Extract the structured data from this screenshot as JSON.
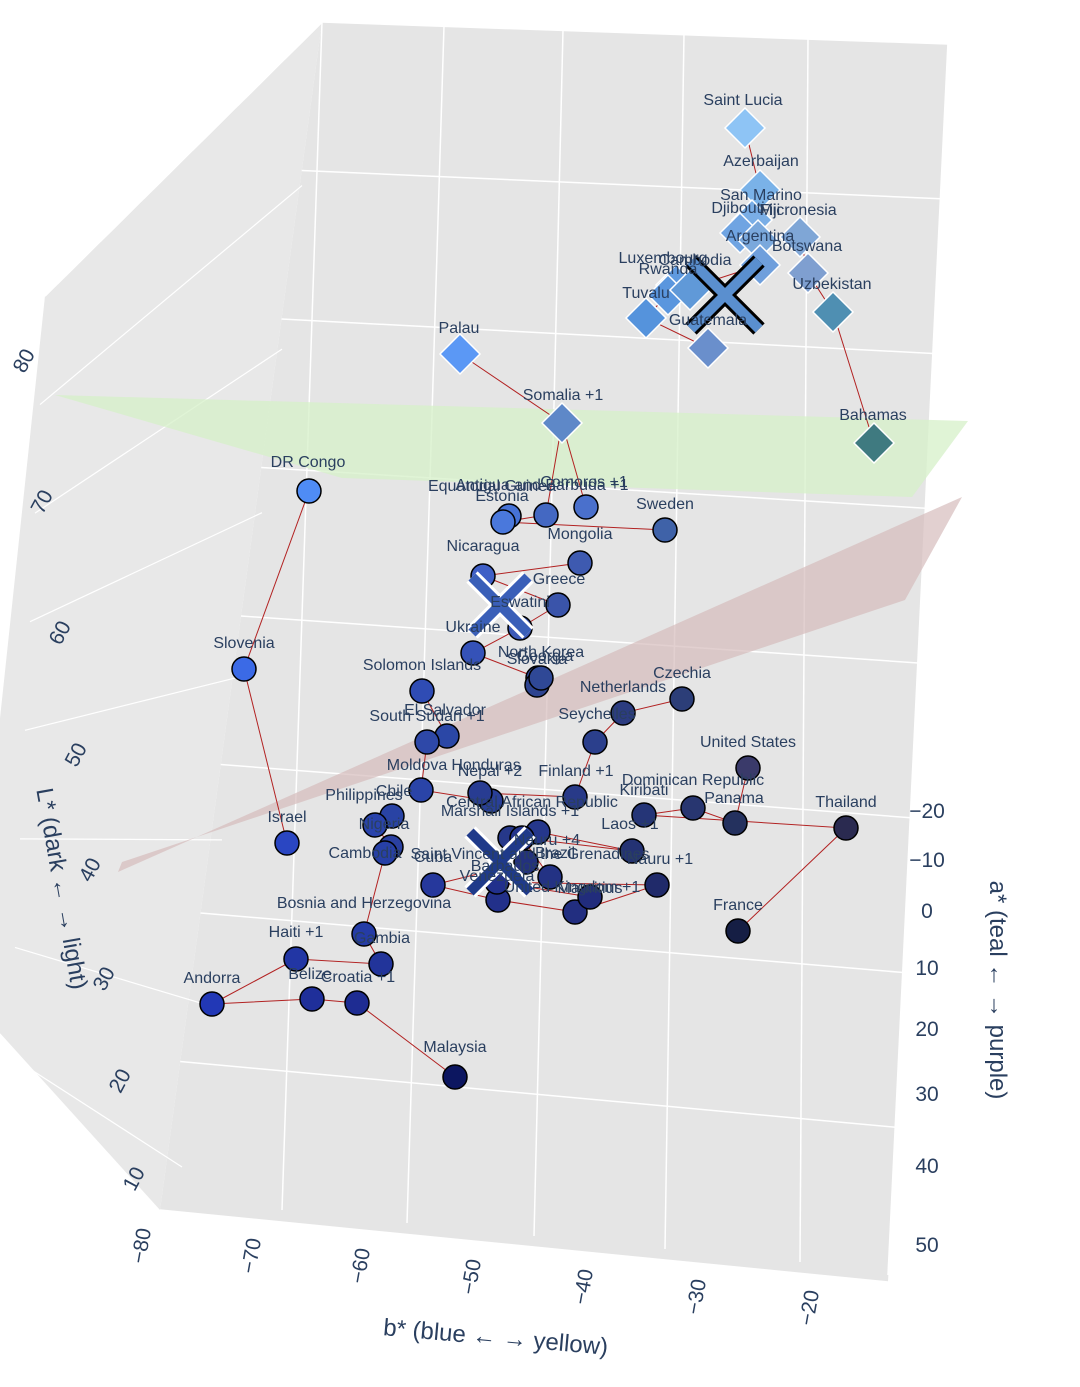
{
  "chart_data": {
    "type": "scatter3d",
    "axes": {
      "x": {
        "title": "b* (blue ← → yellow)",
        "ticks": [
          "−80",
          "−70",
          "−60",
          "−50",
          "−40",
          "−30",
          "−20"
        ]
      },
      "y": {
        "title": "a* (teal ← → purple)",
        "ticks": [
          "−20",
          "−10",
          "0",
          "10",
          "20",
          "30",
          "40",
          "50"
        ]
      },
      "z": {
        "title": "L* (dark ← → light)",
        "ticks": [
          "10",
          "20",
          "30",
          "40",
          "50",
          "60",
          "70",
          "80"
        ]
      }
    },
    "planes": [
      {
        "name": "upper-plane",
        "color": "#d6f0c8"
      },
      {
        "name": "lower-plane",
        "color": "#dcc4c4"
      }
    ],
    "centroids": [
      {
        "name": "centroid-upper",
        "color": "#5a8fcf",
        "outline": "#000000"
      },
      {
        "name": "centroid-middle",
        "color": "#3a5fb8",
        "outline": "#ffffff"
      },
      {
        "name": "centroid-lower",
        "color": "#1f3a8a",
        "outline": "#ffffff"
      }
    ],
    "points": [
      {
        "label": "Saint Lucia",
        "marker": "diamond",
        "color": "#8ec4f5"
      },
      {
        "label": "Azerbaijan",
        "marker": "diamond",
        "color": "#7ab2e8"
      },
      {
        "label": "San Marino",
        "marker": "diamond",
        "color": "#7aaee6"
      },
      {
        "label": "Djibouti",
        "marker": "diamond",
        "color": "#6fa4e2"
      },
      {
        "label": "Fiji",
        "marker": "diamond",
        "color": "#7aa8dc"
      },
      {
        "label": "Micronesia",
        "marker": "diamond",
        "color": "#7fa6d6"
      },
      {
        "label": "Argentina",
        "marker": "diamond",
        "color": "#6f9fdc"
      },
      {
        "label": "Botswana",
        "marker": "diamond",
        "color": "#7f9fd0"
      },
      {
        "label": "Luxembourg",
        "marker": "diamond",
        "color": "#5f9ae0"
      },
      {
        "label": "Rwanda",
        "marker": "diamond",
        "color": "#5a96de"
      },
      {
        "label": "Cambodia",
        "marker": "diamond",
        "color": "#6099d8"
      },
      {
        "label": "Uzbekistan",
        "marker": "diamond",
        "color": "#4f8fb2"
      },
      {
        "label": "Tuvalu",
        "marker": "diamond",
        "color": "#5593dc"
      },
      {
        "label": "Guatemala",
        "marker": "diamond",
        "color": "#6a8fcc"
      },
      {
        "label": "Palau",
        "marker": "diamond",
        "color": "#5b98f5"
      },
      {
        "label": "Somalia +1",
        "marker": "diamond",
        "color": "#5e88c8"
      },
      {
        "label": "Bahamas",
        "marker": "diamond",
        "color": "#3f7a80"
      },
      {
        "label": "DR Congo",
        "marker": "circle",
        "color": "#4f8cf5"
      },
      {
        "label": "Equatorial Guinea",
        "marker": "circle",
        "color": "#4672d6"
      },
      {
        "label": "Antigua and Barbuda +1",
        "marker": "circle",
        "color": "#4468c2"
      },
      {
        "label": "Comoros +1",
        "marker": "circle",
        "color": "#4a70cc"
      },
      {
        "label": "Estonia",
        "marker": "circle",
        "color": "#4a78dc"
      },
      {
        "label": "Sweden",
        "marker": "circle",
        "color": "#3f62a8"
      },
      {
        "label": "Mongolia",
        "marker": "circle",
        "color": "#3e5ab0"
      },
      {
        "label": "Nicaragua",
        "marker": "circle",
        "color": "#3f5fc6"
      },
      {
        "label": "Greece",
        "marker": "circle",
        "color": "#3a54aa"
      },
      {
        "label": "Eswatini",
        "marker": "circle",
        "color": "#3d5ab8"
      },
      {
        "label": "Ukraine",
        "marker": "circle",
        "color": "#3552b8"
      },
      {
        "label": "Slovenia",
        "marker": "circle",
        "color": "#3b6ae6"
      },
      {
        "label": "North Korea",
        "marker": "circle",
        "color": "#2e4592"
      },
      {
        "label": "Slovakia",
        "marker": "circle",
        "color": "#2d4390"
      },
      {
        "label": "Georgia",
        "marker": "circle",
        "color": "#2f4896"
      },
      {
        "label": "Solomon Islands",
        "marker": "circle",
        "color": "#2f4cb4"
      },
      {
        "label": "Czechia",
        "marker": "circle",
        "color": "#2c3e78"
      },
      {
        "label": "Netherlands",
        "marker": "circle",
        "color": "#2c3c80"
      },
      {
        "label": "El Salvador",
        "marker": "circle",
        "color": "#2b47a6"
      },
      {
        "label": "South Sudan +1",
        "marker": "circle",
        "color": "#2e48a8"
      },
      {
        "label": "Seychelles",
        "marker": "circle",
        "color": "#2b3f8c"
      },
      {
        "label": "United States",
        "marker": "circle",
        "color": "#3a3a6a"
      },
      {
        "label": "Moldova",
        "marker": "circle",
        "color": "#2a44a8"
      },
      {
        "label": "Honduras",
        "marker": "circle",
        "color": "#293f98"
      },
      {
        "label": "Nepal +2",
        "marker": "circle",
        "color": "#283c92"
      },
      {
        "label": "Finland +1",
        "marker": "circle",
        "color": "#283a88"
      },
      {
        "label": "Dominican Republic",
        "marker": "circle",
        "color": "#283670"
      },
      {
        "label": "Panama",
        "marker": "circle",
        "color": "#24315e"
      },
      {
        "label": "Kiribati",
        "marker": "circle",
        "color": "#253577"
      },
      {
        "label": "Thailand",
        "marker": "circle",
        "color": "#2a2a50"
      },
      {
        "label": "Chile",
        "marker": "circle",
        "color": "#2943a4"
      },
      {
        "label": "Philippines",
        "marker": "circle",
        "color": "#2a44ac"
      },
      {
        "label": "Central African Republic",
        "marker": "circle",
        "color": "#26388a"
      },
      {
        "label": "Marshall Islands +1",
        "marker": "circle",
        "color": "#25378c"
      },
      {
        "label": "Nigeria",
        "marker": "circle",
        "color": "#2a40a0"
      },
      {
        "label": "Laos +1",
        "marker": "circle",
        "color": "#243273"
      },
      {
        "label": "Israel",
        "marker": "circle",
        "color": "#2a46c2"
      },
      {
        "label": "Nauru +4",
        "marker": "circle",
        "color": "#24358c"
      },
      {
        "label": "Brazil",
        "marker": "circle",
        "color": "#233284"
      },
      {
        "label": "Saint Vincent and the Grenadines",
        "marker": "circle",
        "color": "#23317e"
      },
      {
        "label": "Cambodia",
        "marker": "circle",
        "color": "#2740a6"
      },
      {
        "label": "Cuba",
        "marker": "circle",
        "color": "#26389c"
      },
      {
        "label": "Barbados",
        "marker": "circle",
        "color": "#22308a"
      },
      {
        "label": "United Kingdom +1",
        "marker": "circle",
        "color": "#222e80"
      },
      {
        "label": "Nauru +1",
        "marker": "circle",
        "color": "#202a6a"
      },
      {
        "label": "Venezuela",
        "marker": "circle",
        "color": "#21308c"
      },
      {
        "label": "Mauritius",
        "marker": "circle",
        "color": "#212c7c"
      },
      {
        "label": "Bosnia and Herzegovina",
        "marker": "circle",
        "color": "#253ca6"
      },
      {
        "label": "France",
        "marker": "circle",
        "color": "#151e44"
      },
      {
        "label": "Gambia",
        "marker": "circle",
        "color": "#22349a"
      },
      {
        "label": "Haiti +1",
        "marker": "circle",
        "color": "#2236a4"
      },
      {
        "label": "Andorra",
        "marker": "circle",
        "color": "#2238b6"
      },
      {
        "label": "Belize",
        "marker": "circle",
        "color": "#1f2f9a"
      },
      {
        "label": "Croatia +1",
        "marker": "circle",
        "color": "#1e2c92"
      },
      {
        "label": "Malaysia",
        "marker": "circle",
        "color": "#0c1660"
      }
    ]
  }
}
